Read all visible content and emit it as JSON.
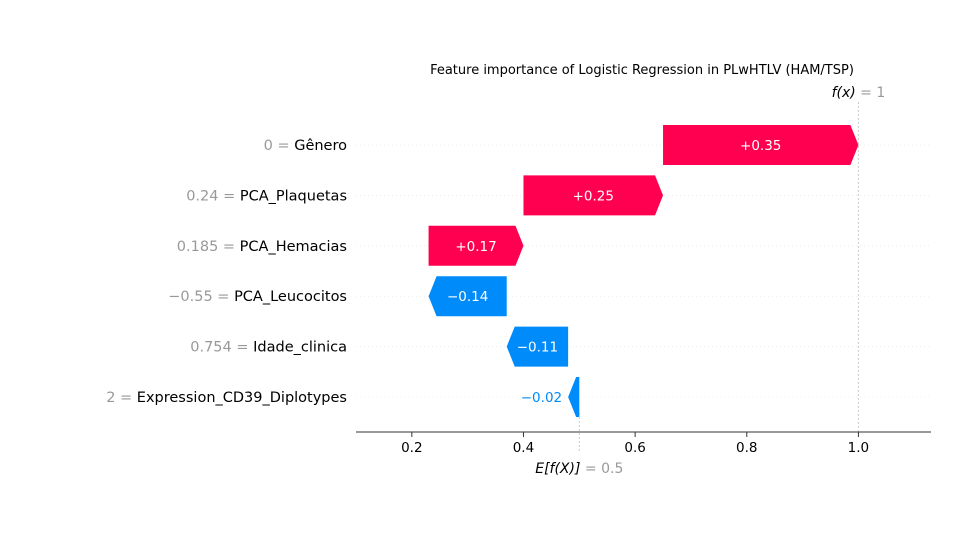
{
  "chart_data": {
    "type": "waterfall",
    "title": "Feature importance of Logistic Regression in PLwHTLV (HAM/TSP)",
    "base_value": 0.5,
    "base_label": "E[f(X)]",
    "base_value_text": "= 0.5",
    "output_value": 1.0,
    "output_label": "f(x)",
    "output_value_text": "= 1",
    "xlim": [
      0.1,
      1.13
    ],
    "x_ticks": [
      0.2,
      0.4,
      0.6,
      0.8,
      1.0
    ],
    "x_tick_labels": [
      "0.2",
      "0.4",
      "0.6",
      "0.8",
      "1.0"
    ],
    "features": [
      {
        "name": "Gênero",
        "value_text": "0 =",
        "contribution": 0.35,
        "label": "+0.35"
      },
      {
        "name": "PCA_Plaquetas",
        "value_text": "0.24 =",
        "contribution": 0.25,
        "label": "+0.25"
      },
      {
        "name": "PCA_Hemacias",
        "value_text": "0.185 =",
        "contribution": 0.17,
        "label": "+0.17"
      },
      {
        "name": "PCA_Leucocitos",
        "value_text": "−0.55 =",
        "contribution": -0.14,
        "label": "−0.14"
      },
      {
        "name": "Idade_clinica",
        "value_text": "0.754 =",
        "contribution": -0.11,
        "label": "−0.11"
      },
      {
        "name": "Expression_CD39_Diplotypes",
        "value_text": "2 =",
        "contribution": -0.02,
        "label": "−0.02"
      }
    ],
    "colors": {
      "positive": "#ff0051",
      "negative": "#008bfb",
      "muted_text": "#999999"
    }
  }
}
